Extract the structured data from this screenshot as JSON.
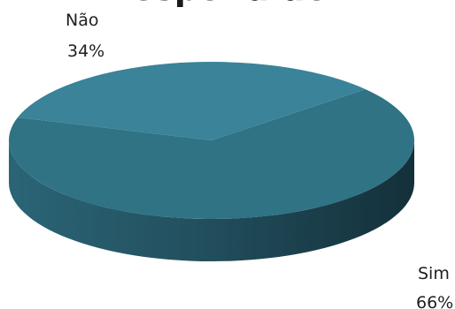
{
  "chart_data": {
    "type": "pie",
    "title": "Respondido",
    "is_3d": true,
    "categories": [
      "Sim",
      "Não"
    ],
    "values": [
      66,
      34
    ],
    "labels": [
      "66%",
      "34%"
    ],
    "colors": {
      "top_main": "#2f7385",
      "top_highlight": "#3a8399",
      "side_light": "#2a6576",
      "side_dark": "#13303a"
    }
  }
}
